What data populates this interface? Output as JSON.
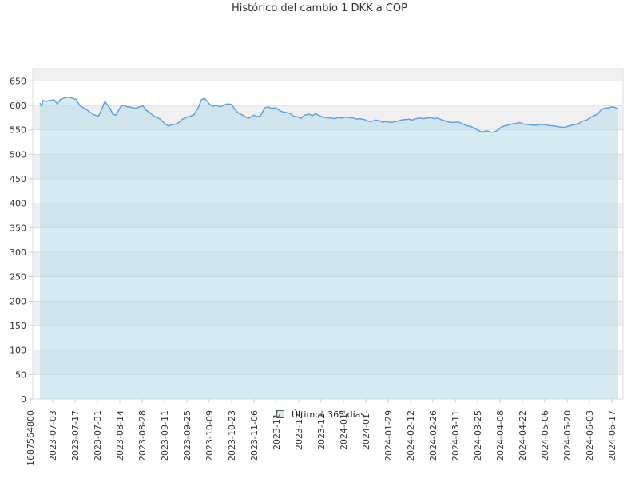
{
  "chart_data": {
    "type": "area",
    "title": "Histórico del cambio 1 DKK a COP",
    "xlabel": "",
    "ylabel": "",
    "ylim": [
      0,
      675
    ],
    "yticks": [
      0,
      50,
      100,
      150,
      200,
      250,
      300,
      350,
      400,
      450,
      500,
      550,
      600,
      650
    ],
    "xtick_labels": [
      "1687564800",
      "2023-07-03",
      "2023-07-17",
      "2023-07-31",
      "2023-08-14",
      "2023-08-28",
      "2023-09-11",
      "2023-09-25",
      "2023-10-09",
      "2023-10-23",
      "2023-11-06",
      "2023-11-",
      "2023-12-",
      "2023-12-",
      "2024-01-",
      "2024-01-",
      "2024-01-29",
      "2024-02-12",
      "2024-02-26",
      "2024-03-11",
      "2024-03-25",
      "2024-04-08",
      "2024-04-22",
      "2024-05-06",
      "2024-05-20",
      "2024-06-03",
      "2024-06-17"
    ],
    "grid": true,
    "legend_position": "bottom-center",
    "series": [
      {
        "name": "Últimos 365 días",
        "line_color": "#5aa5e6",
        "fill_color": "#add8e6",
        "points": [
          [
            "2023-06-24",
            605
          ],
          [
            "2023-06-25",
            598
          ],
          [
            "2023-06-26",
            610
          ],
          [
            "2023-06-28",
            608
          ],
          [
            "2023-06-30",
            610
          ],
          [
            "2023-07-03",
            611
          ],
          [
            "2023-07-05",
            603
          ],
          [
            "2023-07-07",
            612
          ],
          [
            "2023-07-10",
            616
          ],
          [
            "2023-07-12",
            617
          ],
          [
            "2023-07-14",
            615
          ],
          [
            "2023-07-17",
            612
          ],
          [
            "2023-07-19",
            600
          ],
          [
            "2023-07-21",
            596
          ],
          [
            "2023-07-24",
            590
          ],
          [
            "2023-07-26",
            585
          ],
          [
            "2023-07-28",
            581
          ],
          [
            "2023-07-31",
            578
          ],
          [
            "2023-08-02",
            592
          ],
          [
            "2023-08-04",
            608
          ],
          [
            "2023-08-07",
            595
          ],
          [
            "2023-08-09",
            582
          ],
          [
            "2023-08-11",
            580
          ],
          [
            "2023-08-14",
            598
          ],
          [
            "2023-08-16",
            600
          ],
          [
            "2023-08-18",
            597
          ],
          [
            "2023-08-21",
            596
          ],
          [
            "2023-08-23",
            594
          ],
          [
            "2023-08-25",
            596
          ],
          [
            "2023-08-28",
            599
          ],
          [
            "2023-08-30",
            590
          ],
          [
            "2023-09-01",
            586
          ],
          [
            "2023-09-04",
            578
          ],
          [
            "2023-09-06",
            575
          ],
          [
            "2023-09-08",
            572
          ],
          [
            "2023-09-11",
            562
          ],
          [
            "2023-09-13",
            558
          ],
          [
            "2023-09-15",
            560
          ],
          [
            "2023-09-18",
            562
          ],
          [
            "2023-09-20",
            566
          ],
          [
            "2023-09-22",
            572
          ],
          [
            "2023-09-25",
            576
          ],
          [
            "2023-09-27",
            578
          ],
          [
            "2023-09-29",
            580
          ],
          [
            "2023-10-02",
            596
          ],
          [
            "2023-10-04",
            612
          ],
          [
            "2023-10-06",
            614
          ],
          [
            "2023-10-09",
            603
          ],
          [
            "2023-10-11",
            598
          ],
          [
            "2023-10-13",
            600
          ],
          [
            "2023-10-16",
            597
          ],
          [
            "2023-10-18",
            600
          ],
          [
            "2023-10-20",
            603
          ],
          [
            "2023-10-23",
            602
          ],
          [
            "2023-10-25",
            592
          ],
          [
            "2023-10-27",
            585
          ],
          [
            "2023-10-30",
            580
          ],
          [
            "2023-11-01",
            576
          ],
          [
            "2023-11-03",
            574
          ],
          [
            "2023-11-06",
            580
          ],
          [
            "2023-11-08",
            577
          ],
          [
            "2023-11-10",
            578
          ],
          [
            "2023-11-13",
            595
          ],
          [
            "2023-11-15",
            597
          ],
          [
            "2023-11-17",
            594
          ],
          [
            "2023-11-20",
            595
          ],
          [
            "2023-11-22",
            590
          ],
          [
            "2023-11-24",
            587
          ],
          [
            "2023-11-27",
            585
          ],
          [
            "2023-11-29",
            583
          ],
          [
            "2023-12-01",
            578
          ],
          [
            "2023-12-04",
            576
          ],
          [
            "2023-12-06",
            574
          ],
          [
            "2023-12-08",
            580
          ],
          [
            "2023-12-11",
            582
          ],
          [
            "2023-12-13",
            579
          ],
          [
            "2023-12-15",
            583
          ],
          [
            "2023-12-18",
            578
          ],
          [
            "2023-12-20",
            576
          ],
          [
            "2023-12-22",
            575
          ],
          [
            "2023-12-25",
            574
          ],
          [
            "2023-12-27",
            573
          ],
          [
            "2023-12-29",
            575
          ],
          [
            "2024-01-01",
            574
          ],
          [
            "2024-01-03",
            576
          ],
          [
            "2024-01-05",
            575
          ],
          [
            "2024-01-08",
            574
          ],
          [
            "2024-01-10",
            572
          ],
          [
            "2024-01-12",
            573
          ],
          [
            "2024-01-15",
            571
          ],
          [
            "2024-01-17",
            568
          ],
          [
            "2024-01-19",
            567
          ],
          [
            "2024-01-22",
            570
          ],
          [
            "2024-01-24",
            569
          ],
          [
            "2024-01-26",
            566
          ],
          [
            "2024-01-29",
            567
          ],
          [
            "2024-01-31",
            565
          ],
          [
            "2024-02-02",
            566
          ],
          [
            "2024-02-05",
            568
          ],
          [
            "2024-02-07",
            570
          ],
          [
            "2024-02-09",
            571
          ],
          [
            "2024-02-12",
            572
          ],
          [
            "2024-02-14",
            570
          ],
          [
            "2024-02-16",
            573
          ],
          [
            "2024-02-19",
            574
          ],
          [
            "2024-02-21",
            573
          ],
          [
            "2024-02-23",
            574
          ],
          [
            "2024-02-26",
            575
          ],
          [
            "2024-02-28",
            573
          ],
          [
            "2024-03-01",
            574
          ],
          [
            "2024-03-04",
            570
          ],
          [
            "2024-03-06",
            568
          ],
          [
            "2024-03-08",
            566
          ],
          [
            "2024-03-11",
            565
          ],
          [
            "2024-03-13",
            566
          ],
          [
            "2024-03-15",
            565
          ],
          [
            "2024-03-18",
            560
          ],
          [
            "2024-03-20",
            558
          ],
          [
            "2024-03-22",
            557
          ],
          [
            "2024-03-25",
            552
          ],
          [
            "2024-03-27",
            548
          ],
          [
            "2024-03-29",
            546
          ],
          [
            "2024-04-01",
            548
          ],
          [
            "2024-04-03",
            546
          ],
          [
            "2024-04-05",
            545
          ],
          [
            "2024-04-08",
            549
          ],
          [
            "2024-04-10",
            555
          ],
          [
            "2024-04-12",
            558
          ],
          [
            "2024-04-15",
            560
          ],
          [
            "2024-04-17",
            562
          ],
          [
            "2024-04-19",
            563
          ],
          [
            "2024-04-22",
            565
          ],
          [
            "2024-04-24",
            562
          ],
          [
            "2024-04-26",
            561
          ],
          [
            "2024-04-29",
            560
          ],
          [
            "2024-05-01",
            559
          ],
          [
            "2024-05-03",
            560
          ],
          [
            "2024-05-06",
            561
          ],
          [
            "2024-05-08",
            560
          ],
          [
            "2024-05-10",
            559
          ],
          [
            "2024-05-13",
            558
          ],
          [
            "2024-05-15",
            557
          ],
          [
            "2024-05-17",
            556
          ],
          [
            "2024-05-20",
            555
          ],
          [
            "2024-05-22",
            557
          ],
          [
            "2024-05-24",
            559
          ],
          [
            "2024-05-27",
            561
          ],
          [
            "2024-05-29",
            563
          ],
          [
            "2024-05-31",
            567
          ],
          [
            "2024-06-03",
            570
          ],
          [
            "2024-06-05",
            574
          ],
          [
            "2024-06-07",
            578
          ],
          [
            "2024-06-10",
            582
          ],
          [
            "2024-06-12",
            590
          ],
          [
            "2024-06-14",
            594
          ],
          [
            "2024-06-17",
            595
          ],
          [
            "2024-06-19",
            597
          ],
          [
            "2024-06-21",
            596
          ],
          [
            "2024-06-23",
            593
          ]
        ]
      }
    ]
  },
  "colors": {
    "grid_line": "#dddddd",
    "band": "#f0f0f0",
    "axis_text": "#333333",
    "axis_line": "#cccccc"
  }
}
